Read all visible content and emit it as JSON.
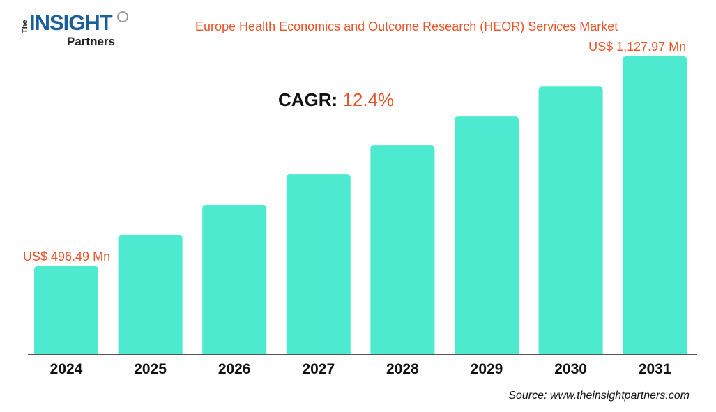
{
  "logo": {
    "text_the": "The",
    "text_insight": "INSIGHT",
    "text_partners": "Partners"
  },
  "chart_data": {
    "type": "bar",
    "title": "Europe Health Economics and Outcome Research (HEOR) Services Market",
    "categories": [
      "2024",
      "2025",
      "2026",
      "2027",
      "2028",
      "2029",
      "2030",
      "2031"
    ],
    "values": [
      496.49,
      591,
      681,
      773,
      861,
      947,
      1037,
      1127.97
    ],
    "unit": "US$ Mn",
    "data_labels": [
      {
        "category": "2024",
        "text": "US$ 496.49 Mn"
      },
      {
        "category": "2031",
        "text": "US$ 1,127.97 Mn"
      }
    ],
    "annotation": {
      "label": "CAGR:",
      "value": "12.4%"
    },
    "xlabel": "",
    "ylabel": "",
    "grid": false,
    "legend": "none",
    "bar_color": "#4deacf",
    "label_color": "#e8542a"
  },
  "source": "Source: www.theinsightpartners.com"
}
